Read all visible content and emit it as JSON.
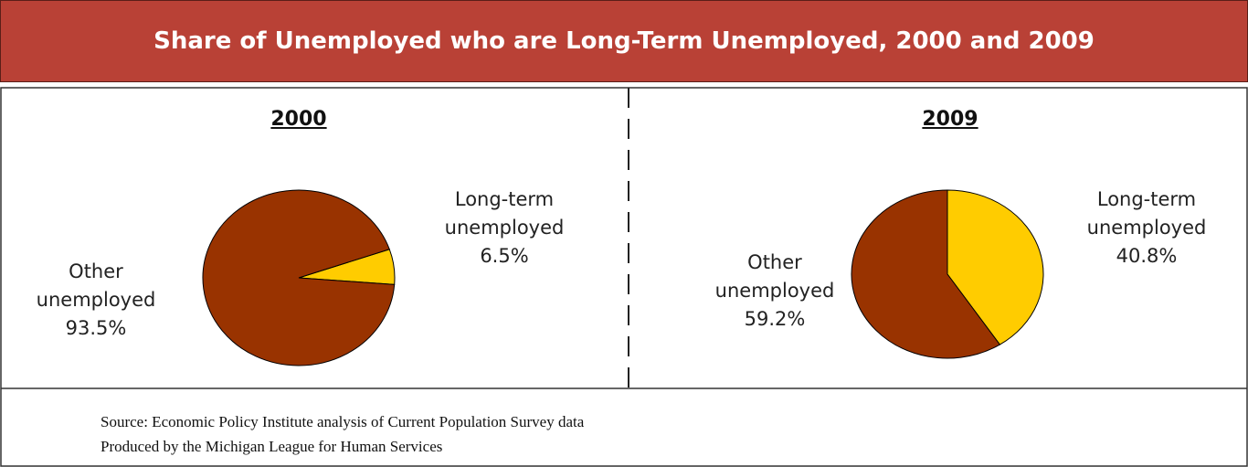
{
  "title": "Share of Unemployed who are Long-Term Unemployed, 2000 and 2009",
  "chart_data": [
    {
      "type": "pie",
      "title": "2000",
      "categories": [
        "Long-term unemployed",
        "Other unemployed"
      ],
      "values": [
        6.5,
        93.5
      ],
      "value_labels": [
        "6.5%",
        "93.5%"
      ],
      "colors": [
        "#ffcc00",
        "#993300"
      ]
    },
    {
      "type": "pie",
      "title": "2009",
      "categories": [
        "Long-term unemployed",
        "Other unemployed"
      ],
      "values": [
        40.8,
        59.2
      ],
      "value_labels": [
        "40.8%",
        "59.2%"
      ],
      "colors": [
        "#ffcc00",
        "#993300"
      ]
    }
  ],
  "notes": [
    "Source: Economic Policy Institute analysis of Current Population Survey data",
    "Produced by the Michigan League for Human Services"
  ]
}
